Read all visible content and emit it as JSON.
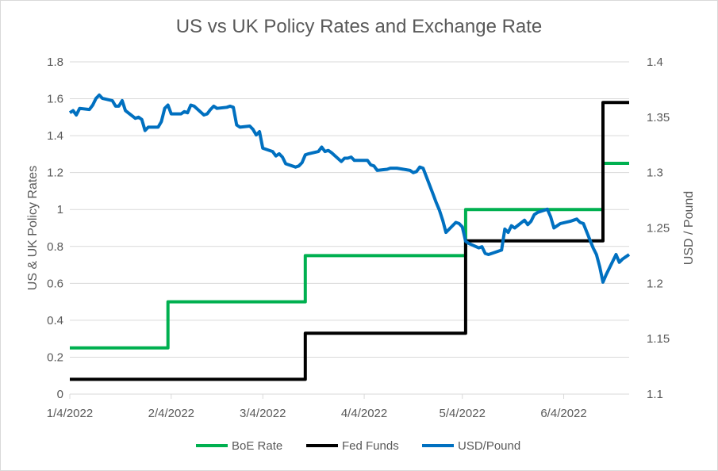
{
  "chart_data": {
    "type": "line",
    "title": "US vs UK Policy Rates and Exchange Rate",
    "ylabel": "US & UK Policy Rates",
    "y2label": "USD / Pound",
    "ylim": [
      0,
      1.8
    ],
    "y2lim": [
      1.1,
      1.4
    ],
    "yticks": [
      "0",
      "0.2",
      "0.4",
      "0.6",
      "0.8",
      "1",
      "1.2",
      "1.4",
      "1.6",
      "1.8"
    ],
    "y2ticks": [
      "1.1",
      "1.15",
      "1.2",
      "1.25",
      "1.3",
      "1.35",
      "1.4"
    ],
    "xlim": [
      "2022-01-04",
      "2022-06-24"
    ],
    "xticks": [
      {
        "date": "2022-01-04",
        "label": "1/4/2022"
      },
      {
        "date": "2022-02-04",
        "label": "2/4/2022"
      },
      {
        "date": "2022-03-04",
        "label": "3/4/2022"
      },
      {
        "date": "2022-04-04",
        "label": "4/4/2022"
      },
      {
        "date": "2022-05-04",
        "label": "5/4/2022"
      },
      {
        "date": "2022-06-04",
        "label": "6/4/2022"
      }
    ],
    "grid": "horizontal",
    "legend_position": "bottom",
    "series": [
      {
        "name": "BoE Rate",
        "color": "#00b050",
        "axis": "left",
        "step": true,
        "points": [
          [
            "2022-01-04",
            0.25
          ],
          [
            "2022-02-03",
            0.25
          ],
          [
            "2022-02-03",
            0.5
          ],
          [
            "2022-03-17",
            0.5
          ],
          [
            "2022-03-17",
            0.75
          ],
          [
            "2022-05-05",
            0.75
          ],
          [
            "2022-05-05",
            1.0
          ],
          [
            "2022-06-16",
            1.0
          ],
          [
            "2022-06-16",
            1.25
          ],
          [
            "2022-06-24",
            1.25
          ]
        ]
      },
      {
        "name": "Fed Funds",
        "color": "#000000",
        "axis": "left",
        "step": true,
        "points": [
          [
            "2022-01-04",
            0.08
          ],
          [
            "2022-03-17",
            0.08
          ],
          [
            "2022-03-17",
            0.33
          ],
          [
            "2022-05-05",
            0.33
          ],
          [
            "2022-05-05",
            0.83
          ],
          [
            "2022-06-16",
            0.83
          ],
          [
            "2022-06-16",
            1.58
          ],
          [
            "2022-06-24",
            1.58
          ]
        ]
      },
      {
        "name": "USD/Pound",
        "color": "#0070c0",
        "axis": "right",
        "step": false,
        "points": [
          [
            "2022-01-04",
            1.354
          ],
          [
            "2022-01-05",
            1.356
          ],
          [
            "2022-01-06",
            1.352
          ],
          [
            "2022-01-07",
            1.358
          ],
          [
            "2022-01-10",
            1.357
          ],
          [
            "2022-01-11",
            1.361
          ],
          [
            "2022-01-12",
            1.367
          ],
          [
            "2022-01-13",
            1.37
          ],
          [
            "2022-01-14",
            1.367
          ],
          [
            "2022-01-17",
            1.365
          ],
          [
            "2022-01-18",
            1.36
          ],
          [
            "2022-01-19",
            1.36
          ],
          [
            "2022-01-20",
            1.365
          ],
          [
            "2022-01-21",
            1.356
          ],
          [
            "2022-01-24",
            1.349
          ],
          [
            "2022-01-25",
            1.35
          ],
          [
            "2022-01-26",
            1.348
          ],
          [
            "2022-01-27",
            1.338
          ],
          [
            "2022-01-28",
            1.341
          ],
          [
            "2022-01-31",
            1.341
          ],
          [
            "2022-02-01",
            1.346
          ],
          [
            "2022-02-02",
            1.358
          ],
          [
            "2022-02-03",
            1.361
          ],
          [
            "2022-02-04",
            1.353
          ],
          [
            "2022-02-07",
            1.353
          ],
          [
            "2022-02-08",
            1.355
          ],
          [
            "2022-02-09",
            1.354
          ],
          [
            "2022-02-10",
            1.361
          ],
          [
            "2022-02-11",
            1.36
          ],
          [
            "2022-02-14",
            1.352
          ],
          [
            "2022-02-15",
            1.353
          ],
          [
            "2022-02-16",
            1.357
          ],
          [
            "2022-02-17",
            1.36
          ],
          [
            "2022-02-18",
            1.358
          ],
          [
            "2022-02-21",
            1.359
          ],
          [
            "2022-02-22",
            1.36
          ],
          [
            "2022-02-23",
            1.359
          ],
          [
            "2022-02-24",
            1.343
          ],
          [
            "2022-02-25",
            1.341
          ],
          [
            "2022-02-28",
            1.342
          ],
          [
            "2022-03-01",
            1.339
          ],
          [
            "2022-03-02",
            1.334
          ],
          [
            "2022-03-03",
            1.337
          ],
          [
            "2022-03-04",
            1.322
          ],
          [
            "2022-03-07",
            1.319
          ],
          [
            "2022-03-08",
            1.315
          ],
          [
            "2022-03-09",
            1.317
          ],
          [
            "2022-03-10",
            1.314
          ],
          [
            "2022-03-11",
            1.308
          ],
          [
            "2022-03-14",
            1.305
          ],
          [
            "2022-03-15",
            1.306
          ],
          [
            "2022-03-16",
            1.309
          ],
          [
            "2022-03-17",
            1.316
          ],
          [
            "2022-03-18",
            1.317
          ],
          [
            "2022-03-21",
            1.319
          ],
          [
            "2022-03-22",
            1.323
          ],
          [
            "2022-03-23",
            1.319
          ],
          [
            "2022-03-24",
            1.32
          ],
          [
            "2022-03-25",
            1.318
          ],
          [
            "2022-03-28",
            1.31
          ],
          [
            "2022-03-29",
            1.313
          ],
          [
            "2022-03-30",
            1.313
          ],
          [
            "2022-03-31",
            1.314
          ],
          [
            "2022-04-01",
            1.311
          ],
          [
            "2022-04-04",
            1.311
          ],
          [
            "2022-04-05",
            1.311
          ],
          [
            "2022-04-06",
            1.307
          ],
          [
            "2022-04-07",
            1.306
          ],
          [
            "2022-04-08",
            1.302
          ],
          [
            "2022-04-11",
            1.303
          ],
          [
            "2022-04-12",
            1.304
          ],
          [
            "2022-04-13",
            1.304
          ],
          [
            "2022-04-14",
            1.304
          ],
          [
            "2022-04-18",
            1.302
          ],
          [
            "2022-04-19",
            1.3
          ],
          [
            "2022-04-20",
            1.301
          ],
          [
            "2022-04-21",
            1.305
          ],
          [
            "2022-04-22",
            1.304
          ],
          [
            "2022-04-25",
            1.281
          ],
          [
            "2022-04-26",
            1.273
          ],
          [
            "2022-04-27",
            1.266
          ],
          [
            "2022-04-28",
            1.257
          ],
          [
            "2022-04-29",
            1.246
          ],
          [
            "2022-05-02",
            1.255
          ],
          [
            "2022-05-03",
            1.254
          ],
          [
            "2022-05-04",
            1.251
          ],
          [
            "2022-05-05",
            1.238
          ],
          [
            "2022-05-06",
            1.236
          ],
          [
            "2022-05-09",
            1.232
          ],
          [
            "2022-05-10",
            1.233
          ],
          [
            "2022-05-11",
            1.227
          ],
          [
            "2022-05-12",
            1.226
          ],
          [
            "2022-05-13",
            1.227
          ],
          [
            "2022-05-16",
            1.23
          ],
          [
            "2022-05-17",
            1.249
          ],
          [
            "2022-05-18",
            1.246
          ],
          [
            "2022-05-19",
            1.252
          ],
          [
            "2022-05-20",
            1.25
          ],
          [
            "2022-05-23",
            1.257
          ],
          [
            "2022-05-24",
            1.253
          ],
          [
            "2022-05-25",
            1.256
          ],
          [
            "2022-05-26",
            1.262
          ],
          [
            "2022-05-27",
            1.264
          ],
          [
            "2022-05-30",
            1.267
          ],
          [
            "2022-05-31",
            1.26
          ],
          [
            "2022-06-01",
            1.25
          ],
          [
            "2022-06-02",
            1.252
          ],
          [
            "2022-06-03",
            1.254
          ],
          [
            "2022-06-06",
            1.256
          ],
          [
            "2022-06-07",
            1.257
          ],
          [
            "2022-06-08",
            1.258
          ],
          [
            "2022-06-09",
            1.255
          ],
          [
            "2022-06-10",
            1.254
          ],
          [
            "2022-06-13",
            1.232
          ],
          [
            "2022-06-14",
            1.226
          ],
          [
            "2022-06-15",
            1.215
          ],
          [
            "2022-06-16",
            1.201
          ],
          [
            "2022-06-17",
            1.208
          ],
          [
            "2022-06-20",
            1.226
          ],
          [
            "2022-06-21",
            1.219
          ],
          [
            "2022-06-22",
            1.222
          ],
          [
            "2022-06-23",
            1.224
          ],
          [
            "2022-06-24",
            1.226
          ]
        ]
      }
    ]
  }
}
